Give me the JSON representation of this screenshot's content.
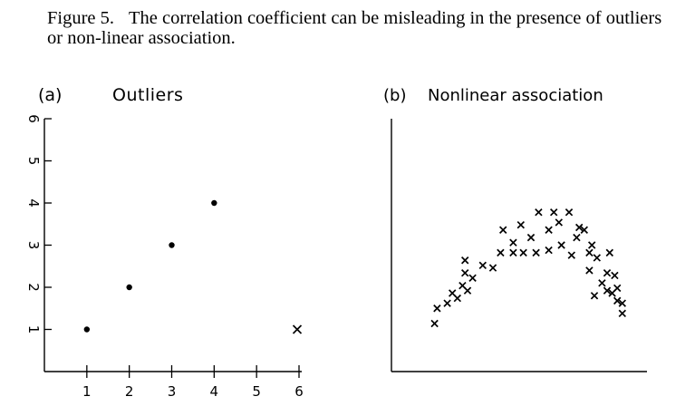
{
  "figure": {
    "number": "Figure 5.",
    "caption": "The correlation coefficient can be misleading in the presence of outliers or non-linear association."
  },
  "chart_data": [
    {
      "type": "scatter",
      "panel_label": "(a)",
      "title": "Outliers",
      "xlabel": "",
      "ylabel": "",
      "xlim": [
        0,
        6
      ],
      "ylim": [
        0,
        6
      ],
      "xticks": [
        1,
        2,
        3,
        4,
        5,
        6
      ],
      "yticks": [
        1,
        2,
        3,
        4,
        5,
        6
      ],
      "grid": false,
      "series": [
        {
          "marker": "dot",
          "points": [
            [
              1,
              1
            ],
            [
              2,
              2
            ],
            [
              3,
              3
            ],
            [
              4,
              4
            ]
          ]
        },
        {
          "marker": "x",
          "points": [
            [
              6,
              1
            ]
          ]
        }
      ]
    },
    {
      "type": "scatter",
      "panel_label": "(b)",
      "title": "Nonlinear association",
      "xlabel": "",
      "ylabel": "",
      "xlim": [
        0,
        10
      ],
      "ylim": [
        0,
        10
      ],
      "xticks": [],
      "yticks": [],
      "grid": false,
      "series": [
        {
          "marker": "x",
          "points": [
            [
              1.7,
              1.9
            ],
            [
              1.8,
              2.5
            ],
            [
              2.2,
              2.7
            ],
            [
              2.4,
              3.1
            ],
            [
              2.6,
              2.9
            ],
            [
              2.8,
              3.4
            ],
            [
              3.0,
              3.2
            ],
            [
              2.9,
              3.9
            ],
            [
              2.9,
              4.4
            ],
            [
              3.2,
              3.7
            ],
            [
              3.6,
              4.2
            ],
            [
              4.0,
              4.1
            ],
            [
              4.3,
              4.7
            ],
            [
              4.4,
              5.6
            ],
            [
              4.8,
              5.1
            ],
            [
              4.8,
              4.7
            ],
            [
              5.1,
              5.8
            ],
            [
              5.2,
              4.7
            ],
            [
              5.7,
              4.7
            ],
            [
              5.5,
              5.3
            ],
            [
              5.8,
              6.3
            ],
            [
              6.2,
              4.8
            ],
            [
              6.2,
              5.6
            ],
            [
              6.4,
              6.3
            ],
            [
              6.6,
              5.9
            ],
            [
              6.7,
              5.0
            ],
            [
              7.0,
              6.3
            ],
            [
              7.1,
              4.6
            ],
            [
              7.3,
              5.3
            ],
            [
              7.4,
              5.7
            ],
            [
              7.6,
              5.6
            ],
            [
              7.8,
              4.7
            ],
            [
              7.8,
              4.0
            ],
            [
              7.9,
              5.0
            ],
            [
              8.1,
              4.5
            ],
            [
              8.6,
              4.7
            ],
            [
              8.5,
              3.9
            ],
            [
              8.0,
              3.0
            ],
            [
              8.3,
              3.5
            ],
            [
              8.5,
              3.2
            ],
            [
              8.8,
              3.8
            ],
            [
              8.7,
              3.1
            ],
            [
              8.9,
              2.8
            ],
            [
              8.9,
              3.3
            ],
            [
              9.1,
              2.7
            ],
            [
              9.1,
              2.3
            ]
          ]
        }
      ]
    }
  ]
}
